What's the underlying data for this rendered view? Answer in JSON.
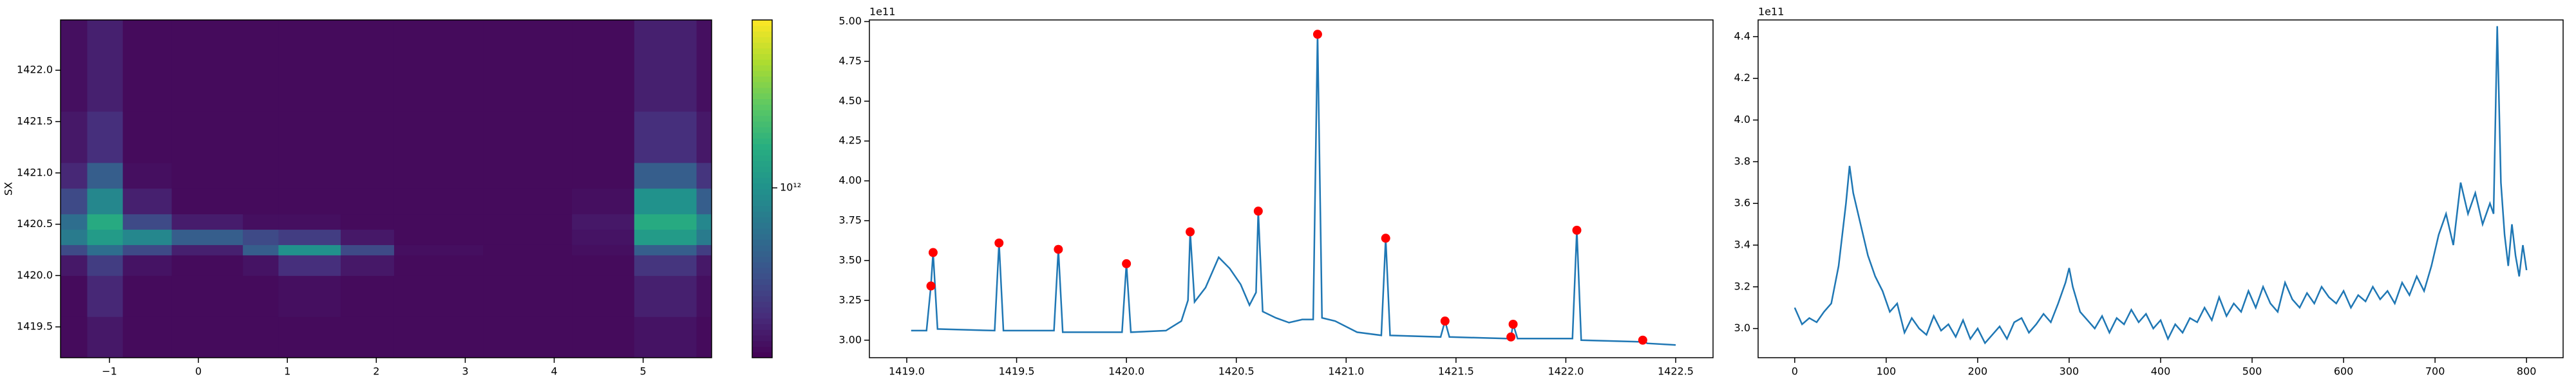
{
  "chart_data": [
    {
      "type": "heatmap",
      "ylabel": "SX",
      "colormap": "viridis",
      "log_color": true,
      "xbins": [
        -1.55,
        -1.25,
        -0.85,
        -0.3,
        0.5,
        0.9,
        1.6,
        2.2,
        3.2,
        4.2,
        4.9,
        5.6,
        5.77
      ],
      "ybins": [
        1419.2,
        1419.6,
        1420.0,
        1420.2,
        1420.3,
        1420.45,
        1420.6,
        1420.85,
        1421.1,
        1421.6,
        1422.49
      ],
      "z": [
        [
          310000000000.0,
          340000000000.0,
          310000000000.0,
          310000000000.0,
          310000000000.0,
          310000000000.0,
          310000000000.0,
          310000000000.0,
          310000000000.0,
          310000000000.0,
          330000000000.0,
          310000000000.0
        ],
        [
          310000000000.0,
          380000000000.0,
          310000000000.0,
          310000000000.0,
          310000000000.0,
          320000000000.0,
          310000000000.0,
          310000000000.0,
          310000000000.0,
          310000000000.0,
          360000000000.0,
          320000000000.0
        ],
        [
          340000000000.0,
          450000000000.0,
          330000000000.0,
          310000000000.0,
          330000000000.0,
          400000000000.0,
          340000000000.0,
          310000000000.0,
          310000000000.0,
          310000000000.0,
          420000000000.0,
          340000000000.0
        ],
        [
          500000000000.0,
          700000000000.0,
          500000000000.0,
          360000000000.0,
          600000000000.0,
          1000000000000.0,
          500000000000.0,
          320000000000.0,
          310000000000.0,
          320000000000.0,
          600000000000.0,
          450000000000.0
        ],
        [
          800000000000.0,
          1100000000000.0,
          900000000000.0,
          600000000000.0,
          500000000000.0,
          450000000000.0,
          340000000000.0,
          310000000000.0,
          310000000000.0,
          330000000000.0,
          1100000000000.0,
          800000000000.0
        ],
        [
          700000000000.0,
          1300000000000.0,
          500000000000.0,
          350000000000.0,
          320000000000.0,
          320000000000.0,
          310000000000.0,
          310000000000.0,
          310000000000.0,
          340000000000.0,
          1300000000000.0,
          900000000000.0
        ],
        [
          500000000000.0,
          900000000000.0,
          360000000000.0,
          310000000000.0,
          310000000000.0,
          310000000000.0,
          310000000000.0,
          310000000000.0,
          310000000000.0,
          320000000000.0,
          1000000000000.0,
          600000000000.0
        ],
        [
          380000000000.0,
          600000000000.0,
          320000000000.0,
          310000000000.0,
          310000000000.0,
          310000000000.0,
          310000000000.0,
          310000000000.0,
          310000000000.0,
          310000000000.0,
          600000000000.0,
          420000000000.0
        ],
        [
          340000000000.0,
          400000000000.0,
          310000000000.0,
          310000000000.0,
          310000000000.0,
          310000000000.0,
          310000000000.0,
          310000000000.0,
          310000000000.0,
          310000000000.0,
          400000000000.0,
          340000000000.0
        ],
        [
          320000000000.0,
          360000000000.0,
          310000000000.0,
          310000000000.0,
          310000000000.0,
          310000000000.0,
          310000000000.0,
          310000000000.0,
          310000000000.0,
          310000000000.0,
          360000000000.0,
          320000000000.0
        ]
      ],
      "clim": [
        290000000000.0,
        3400000000000.0
      ],
      "cticks": [
        {
          "value": 1000000000000.0,
          "label": "10¹²"
        }
      ],
      "xlim": [
        -1.55,
        5.77
      ],
      "ylim": [
        1419.2,
        1422.49
      ],
      "xticks": [
        {
          "value": -1,
          "label": "−1"
        },
        0,
        1,
        2,
        3,
        4,
        5
      ],
      "yticks": [
        {
          "value": 1419.5,
          "label": "1419.5"
        },
        {
          "value": 1420.0,
          "label": "1420.0"
        },
        {
          "value": 1420.5,
          "label": "1420.5"
        },
        {
          "value": 1421.0,
          "label": "1421.0"
        },
        {
          "value": 1421.5,
          "label": "1421.5"
        },
        {
          "value": 1422.0,
          "label": "1422.0"
        }
      ]
    },
    {
      "type": "line",
      "y_offset_label": "1e11",
      "color": "#1f77b4",
      "x": [
        1419.02,
        1419.09,
        1419.11,
        1419.12,
        1419.14,
        1419.4,
        1419.42,
        1419.44,
        1419.67,
        1419.69,
        1419.71,
        1419.98,
        1420.0,
        1420.02,
        1420.18,
        1420.25,
        1420.28,
        1420.29,
        1420.31,
        1420.36,
        1420.42,
        1420.47,
        1420.52,
        1420.56,
        1420.59,
        1420.6,
        1420.62,
        1420.68,
        1420.74,
        1420.8,
        1420.85,
        1420.87,
        1420.89,
        1420.95,
        1421.05,
        1421.16,
        1421.18,
        1421.2,
        1421.43,
        1421.45,
        1421.47,
        1421.73,
        1421.75,
        1421.76,
        1421.78,
        1422.03,
        1422.05,
        1422.07,
        1422.33,
        1422.35,
        1422.37,
        1422.5
      ],
      "values": [
        3.06,
        3.06,
        3.34,
        3.55,
        3.07,
        3.06,
        3.61,
        3.06,
        3.06,
        3.57,
        3.05,
        3.05,
        3.48,
        3.05,
        3.06,
        3.12,
        3.25,
        3.68,
        3.24,
        3.33,
        3.52,
        3.45,
        3.35,
        3.22,
        3.3,
        3.81,
        3.18,
        3.14,
        3.11,
        3.13,
        3.13,
        4.92,
        3.14,
        3.12,
        3.05,
        3.03,
        3.64,
        3.03,
        3.02,
        3.12,
        3.02,
        3.01,
        3.02,
        3.1,
        3.01,
        3.01,
        3.69,
        3.0,
        2.99,
        3.0,
        2.98,
        2.97
      ],
      "peaks": {
        "color": "#ff0000",
        "x": [
          1419.11,
          1419.12,
          1419.42,
          1419.69,
          1420.0,
          1420.29,
          1420.6,
          1420.87,
          1421.18,
          1421.45,
          1421.75,
          1421.76,
          1422.05,
          1422.35
        ],
        "values": [
          3.34,
          3.55,
          3.61,
          3.57,
          3.48,
          3.68,
          3.81,
          4.92,
          3.64,
          3.12,
          3.02,
          3.1,
          3.69,
          3.0
        ]
      },
      "xlim": [
        1418.83,
        1422.67
      ],
      "ylim": [
        2.89,
        5.01
      ],
      "xticks": [
        {
          "value": 1419.0,
          "label": "1419.0"
        },
        {
          "value": 1419.5,
          "label": "1419.5"
        },
        {
          "value": 1420.0,
          "label": "1420.0"
        },
        {
          "value": 1420.5,
          "label": "1420.5"
        },
        {
          "value": 1421.0,
          "label": "1421.0"
        },
        {
          "value": 1421.5,
          "label": "1421.5"
        },
        {
          "value": 1422.0,
          "label": "1422.0"
        },
        {
          "value": 1422.5,
          "label": "1422.5"
        }
      ],
      "yticks": [
        {
          "value": 3.0,
          "label": "3.00"
        },
        {
          "value": 3.25,
          "label": "3.25"
        },
        {
          "value": 3.5,
          "label": "3.50"
        },
        {
          "value": 3.75,
          "label": "3.75"
        },
        {
          "value": 4.0,
          "label": "4.00"
        },
        {
          "value": 4.25,
          "label": "4.25"
        },
        {
          "value": 4.5,
          "label": "4.50"
        },
        {
          "value": 4.75,
          "label": "4.75"
        },
        {
          "value": 5.0,
          "label": "5.00"
        }
      ]
    },
    {
      "type": "line",
      "y_offset_label": "1e11",
      "color": "#1f77b4",
      "x": [
        0,
        8,
        16,
        24,
        32,
        40,
        48,
        56,
        60,
        64,
        72,
        80,
        88,
        96,
        104,
        112,
        120,
        128,
        136,
        144,
        152,
        160,
        168,
        176,
        184,
        192,
        200,
        208,
        216,
        224,
        232,
        240,
        248,
        256,
        264,
        272,
        280,
        288,
        296,
        300,
        304,
        312,
        320,
        328,
        336,
        344,
        352,
        360,
        368,
        376,
        384,
        392,
        400,
        408,
        416,
        424,
        432,
        440,
        448,
        456,
        464,
        472,
        480,
        488,
        496,
        504,
        512,
        520,
        528,
        536,
        544,
        552,
        560,
        568,
        576,
        584,
        592,
        600,
        608,
        616,
        624,
        632,
        640,
        648,
        656,
        664,
        672,
        680,
        688,
        696,
        704,
        712,
        720,
        728,
        736,
        744,
        752,
        760,
        764,
        768,
        772,
        776,
        780,
        784,
        788,
        792,
        796,
        800
      ],
      "values": [
        3.1,
        3.02,
        3.05,
        3.03,
        3.08,
        3.12,
        3.3,
        3.6,
        3.78,
        3.65,
        3.5,
        3.35,
        3.25,
        3.18,
        3.08,
        3.12,
        2.98,
        3.05,
        3.0,
        2.97,
        3.06,
        2.99,
        3.02,
        2.96,
        3.04,
        2.95,
        3.0,
        2.93,
        2.97,
        3.01,
        2.95,
        3.03,
        3.05,
        2.98,
        3.02,
        3.07,
        3.03,
        3.12,
        3.22,
        3.29,
        3.2,
        3.08,
        3.04,
        3.0,
        3.06,
        2.98,
        3.05,
        3.02,
        3.09,
        3.03,
        3.07,
        3.0,
        3.04,
        2.95,
        3.02,
        2.98,
        3.05,
        3.03,
        3.1,
        3.04,
        3.15,
        3.06,
        3.12,
        3.08,
        3.18,
        3.1,
        3.2,
        3.12,
        3.08,
        3.22,
        3.14,
        3.1,
        3.17,
        3.12,
        3.2,
        3.15,
        3.12,
        3.18,
        3.1,
        3.16,
        3.13,
        3.2,
        3.14,
        3.18,
        3.12,
        3.22,
        3.16,
        3.25,
        3.18,
        3.3,
        3.45,
        3.55,
        3.4,
        3.7,
        3.55,
        3.65,
        3.5,
        3.6,
        3.55,
        4.45,
        3.7,
        3.45,
        3.3,
        3.5,
        3.35,
        3.25,
        3.4,
        3.28
      ],
      "xlim": [
        -40,
        840
      ],
      "ylim": [
        2.86,
        4.48
      ],
      "xticks": [
        0,
        100,
        200,
        300,
        400,
        500,
        600,
        700,
        800
      ],
      "yticks": [
        {
          "value": 3.0,
          "label": "3.0"
        },
        {
          "value": 3.2,
          "label": "3.2"
        },
        {
          "value": 3.4,
          "label": "3.4"
        },
        {
          "value": 3.6,
          "label": "3.6"
        },
        {
          "value": 3.8,
          "label": "3.8"
        },
        {
          "value": 4.0,
          "label": "4.0"
        },
        {
          "value": 4.2,
          "label": "4.2"
        },
        {
          "value": 4.4,
          "label": "4.4"
        }
      ]
    }
  ]
}
